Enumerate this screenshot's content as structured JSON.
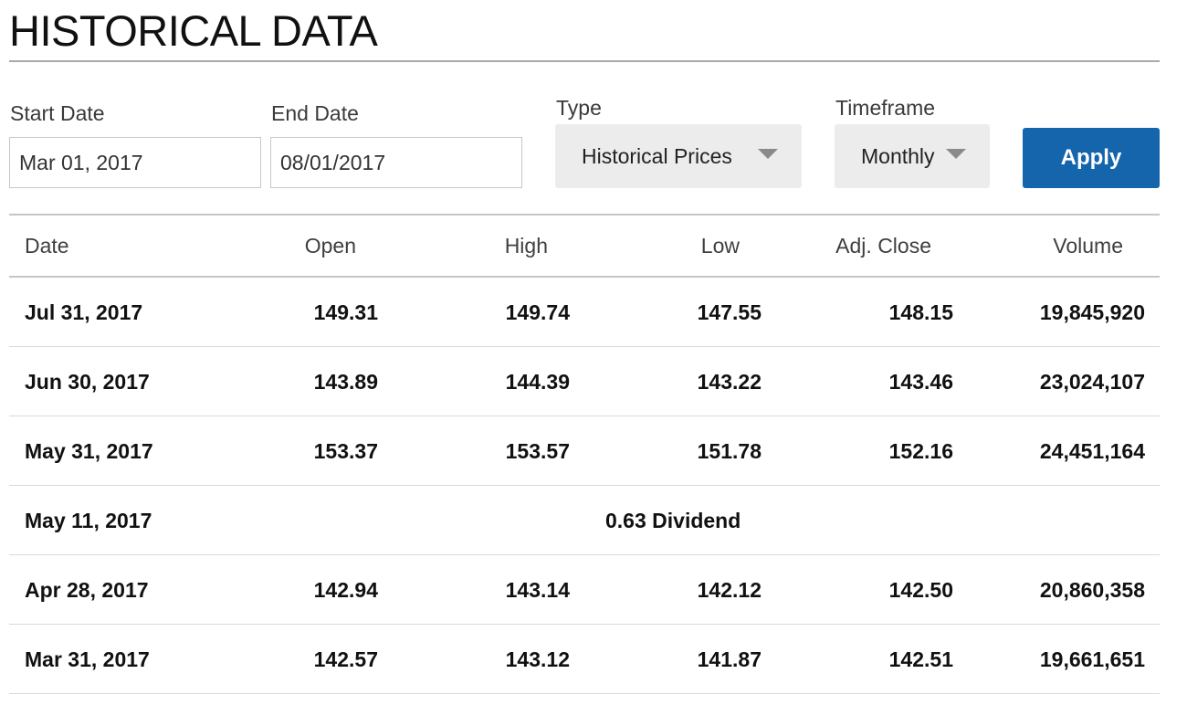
{
  "page": {
    "title": "HISTORICAL DATA"
  },
  "filters": {
    "start_date_label": "Start Date",
    "start_date_value": "Mar 01, 2017",
    "end_date_label": "End Date",
    "end_date_value": "08/01/2017",
    "type_label": "Type",
    "type_value": "Historical Prices",
    "timeframe_label": "Timeframe",
    "timeframe_value": "Monthly",
    "apply_label": "Apply"
  },
  "table": {
    "headers": {
      "date": "Date",
      "open": "Open",
      "high": "High",
      "low": "Low",
      "adj_close": "Adj. Close",
      "volume": "Volume"
    },
    "rows": [
      {
        "date": "Jul 31, 2017",
        "open": "149.31",
        "high": "149.74",
        "low": "147.55",
        "adj_close": "148.15",
        "volume": "19,845,920"
      },
      {
        "date": "Jun 30, 2017",
        "open": "143.89",
        "high": "144.39",
        "low": "143.22",
        "adj_close": "143.46",
        "volume": "23,024,107"
      },
      {
        "date": "May 31, 2017",
        "open": "153.37",
        "high": "153.57",
        "low": "151.78",
        "adj_close": "152.16",
        "volume": "24,451,164"
      },
      {
        "date": "May 11, 2017",
        "dividend": "0.63 Dividend"
      },
      {
        "date": "Apr 28, 2017",
        "open": "142.94",
        "high": "143.14",
        "low": "142.12",
        "adj_close": "142.50",
        "volume": "20,860,358"
      },
      {
        "date": "Mar 31, 2017",
        "open": "142.57",
        "high": "143.12",
        "low": "141.87",
        "adj_close": "142.51",
        "volume": "19,661,651"
      }
    ]
  },
  "colors": {
    "apply_button": "#1565ad",
    "select_background": "#ececec",
    "rule": "#c6c6c6"
  },
  "icons": {
    "type_dropdown": "caret-down-icon",
    "timeframe_dropdown": "caret-down-icon"
  }
}
